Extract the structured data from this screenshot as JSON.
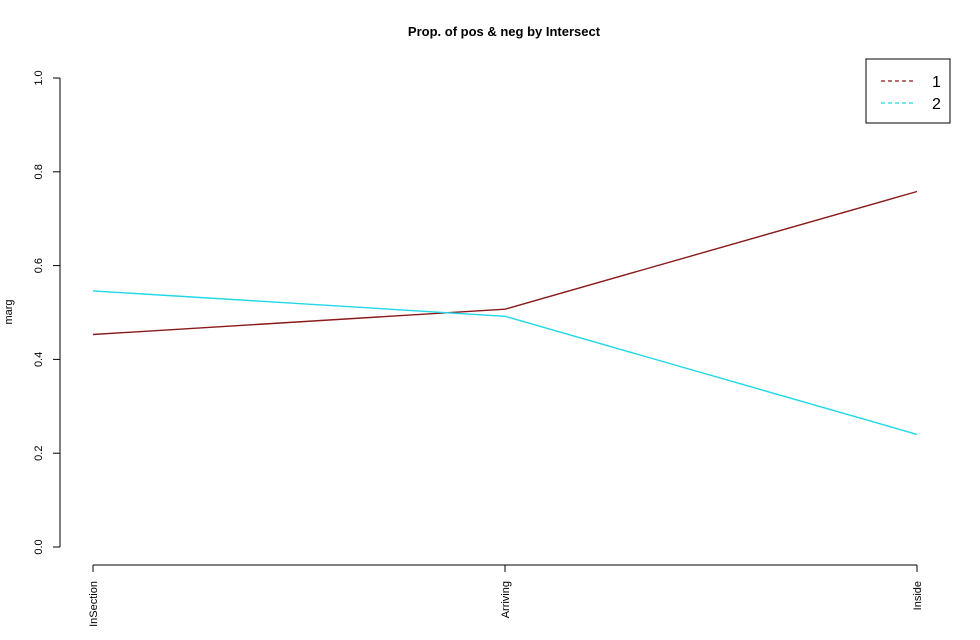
{
  "chart_data": {
    "type": "line",
    "title": "Prop. of pos & neg by Intersect",
    "xlabel": "",
    "ylabel": "marg",
    "categories": [
      "InSection",
      "Arriving",
      "Inside"
    ],
    "ylim": [
      0,
      1
    ],
    "yticks": [
      "0.0",
      "0.2",
      "0.4",
      "0.6",
      "0.8",
      "1.0"
    ],
    "grid": false,
    "legend_position": "top-right",
    "series": [
      {
        "name": "1",
        "values": [
          0.453,
          0.507,
          0.758
        ],
        "color": "#8b1a1a",
        "legend_dash": "dashed"
      },
      {
        "name": "2",
        "values": [
          0.546,
          0.492,
          0.24
        ],
        "color": "#22d8e8",
        "legend_dash": "dashed"
      }
    ]
  }
}
